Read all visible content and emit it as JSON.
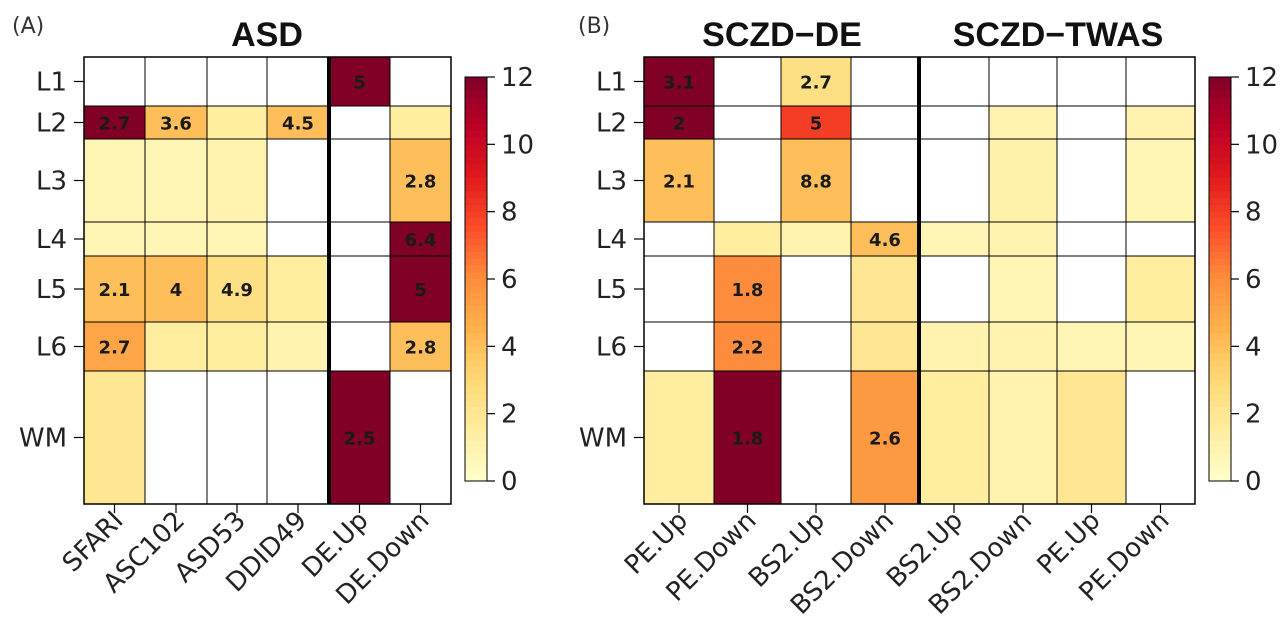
{
  "colors": {
    "scale": [
      "#FFFFCC",
      "#FFEDA0",
      "#FED976",
      "#FEB24C",
      "#FD8D3C",
      "#FC4E2A",
      "#E31A1C",
      "#BD0026",
      "#800026"
    ],
    "grid": "#000000",
    "empty": "#ffffff"
  },
  "chart_data": [
    {
      "type": "heatmap",
      "panel": "(A)",
      "title": "ASD",
      "row_labels": [
        "L1",
        "L2",
        "L3",
        "L4",
        "L5",
        "L6",
        "WM"
      ],
      "col_labels": [
        "SFARI",
        "ASC102",
        "ASD53",
        "DDID49",
        "DE.Up",
        "DE.Down"
      ],
      "separator_after_col": 4,
      "values": [
        [
          0,
          0,
          0,
          0,
          12,
          0
        ],
        [
          12,
          4,
          1.5,
          4,
          0,
          1.5
        ],
        [
          0.8,
          0.8,
          1,
          0,
          0,
          4
        ],
        [
          0.8,
          0.8,
          0.8,
          0,
          0,
          12
        ],
        [
          4,
          4,
          2.5,
          1.5,
          0,
          12
        ],
        [
          5,
          1.5,
          1.5,
          1,
          0,
          4
        ],
        [
          2,
          0,
          0,
          0,
          12,
          0
        ]
      ],
      "labels": [
        [
          "",
          "",
          "",
          "",
          "5",
          ""
        ],
        [
          "2.7",
          "3.6",
          "",
          "4.5",
          "",
          ""
        ],
        [
          "",
          "",
          "",
          "",
          "",
          "2.8"
        ],
        [
          "",
          "",
          "",
          "",
          "",
          "6.4"
        ],
        [
          "2.1",
          "4",
          "4.9",
          "",
          "",
          "5"
        ],
        [
          "2.7",
          "",
          "",
          "",
          "",
          "2.8"
        ],
        [
          "",
          "",
          "",
          "",
          "2.5",
          ""
        ]
      ],
      "legend": {
        "min": 0,
        "max": 12,
        "ticks": [
          0,
          2,
          4,
          6,
          8,
          10,
          12
        ]
      }
    },
    {
      "type": "heatmap",
      "panel": "(B)",
      "titles": [
        "SCZD−DE",
        "SCZD−TWAS"
      ],
      "row_labels": [
        "L1",
        "L2",
        "L3",
        "L4",
        "L5",
        "L6",
        "WM"
      ],
      "col_labels": [
        "PE.Up",
        "PE.Down",
        "BS2.Up",
        "BS2.Down",
        "BS2.Up",
        "BS2.Down",
        "PE.Up",
        "PE.Down"
      ],
      "separator_after_col": 4,
      "values": [
        [
          12,
          0,
          2.5,
          0,
          0,
          0,
          0,
          0
        ],
        [
          12,
          0,
          8,
          0,
          0,
          1,
          0,
          1
        ],
        [
          4,
          0,
          4,
          0,
          0,
          1.2,
          0,
          0.8
        ],
        [
          0,
          1.5,
          1,
          4,
          0.8,
          1,
          0,
          0
        ],
        [
          0,
          6,
          0,
          2,
          0,
          0.8,
          0,
          1.5
        ],
        [
          0,
          6,
          0,
          2,
          1,
          1,
          0.8,
          0.8
        ],
        [
          1.5,
          12,
          0,
          5.5,
          1.5,
          1,
          2,
          0
        ]
      ],
      "labels": [
        [
          "3.1",
          "",
          "2.7",
          "",
          "",
          "",
          "",
          ""
        ],
        [
          "2",
          "",
          "5",
          "",
          "",
          "",
          "",
          ""
        ],
        [
          "2.1",
          "",
          "8.8",
          "",
          "",
          "",
          "",
          ""
        ],
        [
          "",
          "",
          "",
          "4.6",
          "",
          "",
          "",
          ""
        ],
        [
          "",
          "1.8",
          "",
          "",
          "",
          "",
          "",
          ""
        ],
        [
          "",
          "2.2",
          "",
          "",
          "",
          "",
          "",
          ""
        ],
        [
          "",
          "1.8",
          "",
          "2.6",
          "",
          "",
          "",
          ""
        ]
      ],
      "legend": {
        "min": 0,
        "max": 12,
        "ticks": [
          0,
          2,
          4,
          6,
          8,
          10,
          12
        ]
      }
    }
  ]
}
